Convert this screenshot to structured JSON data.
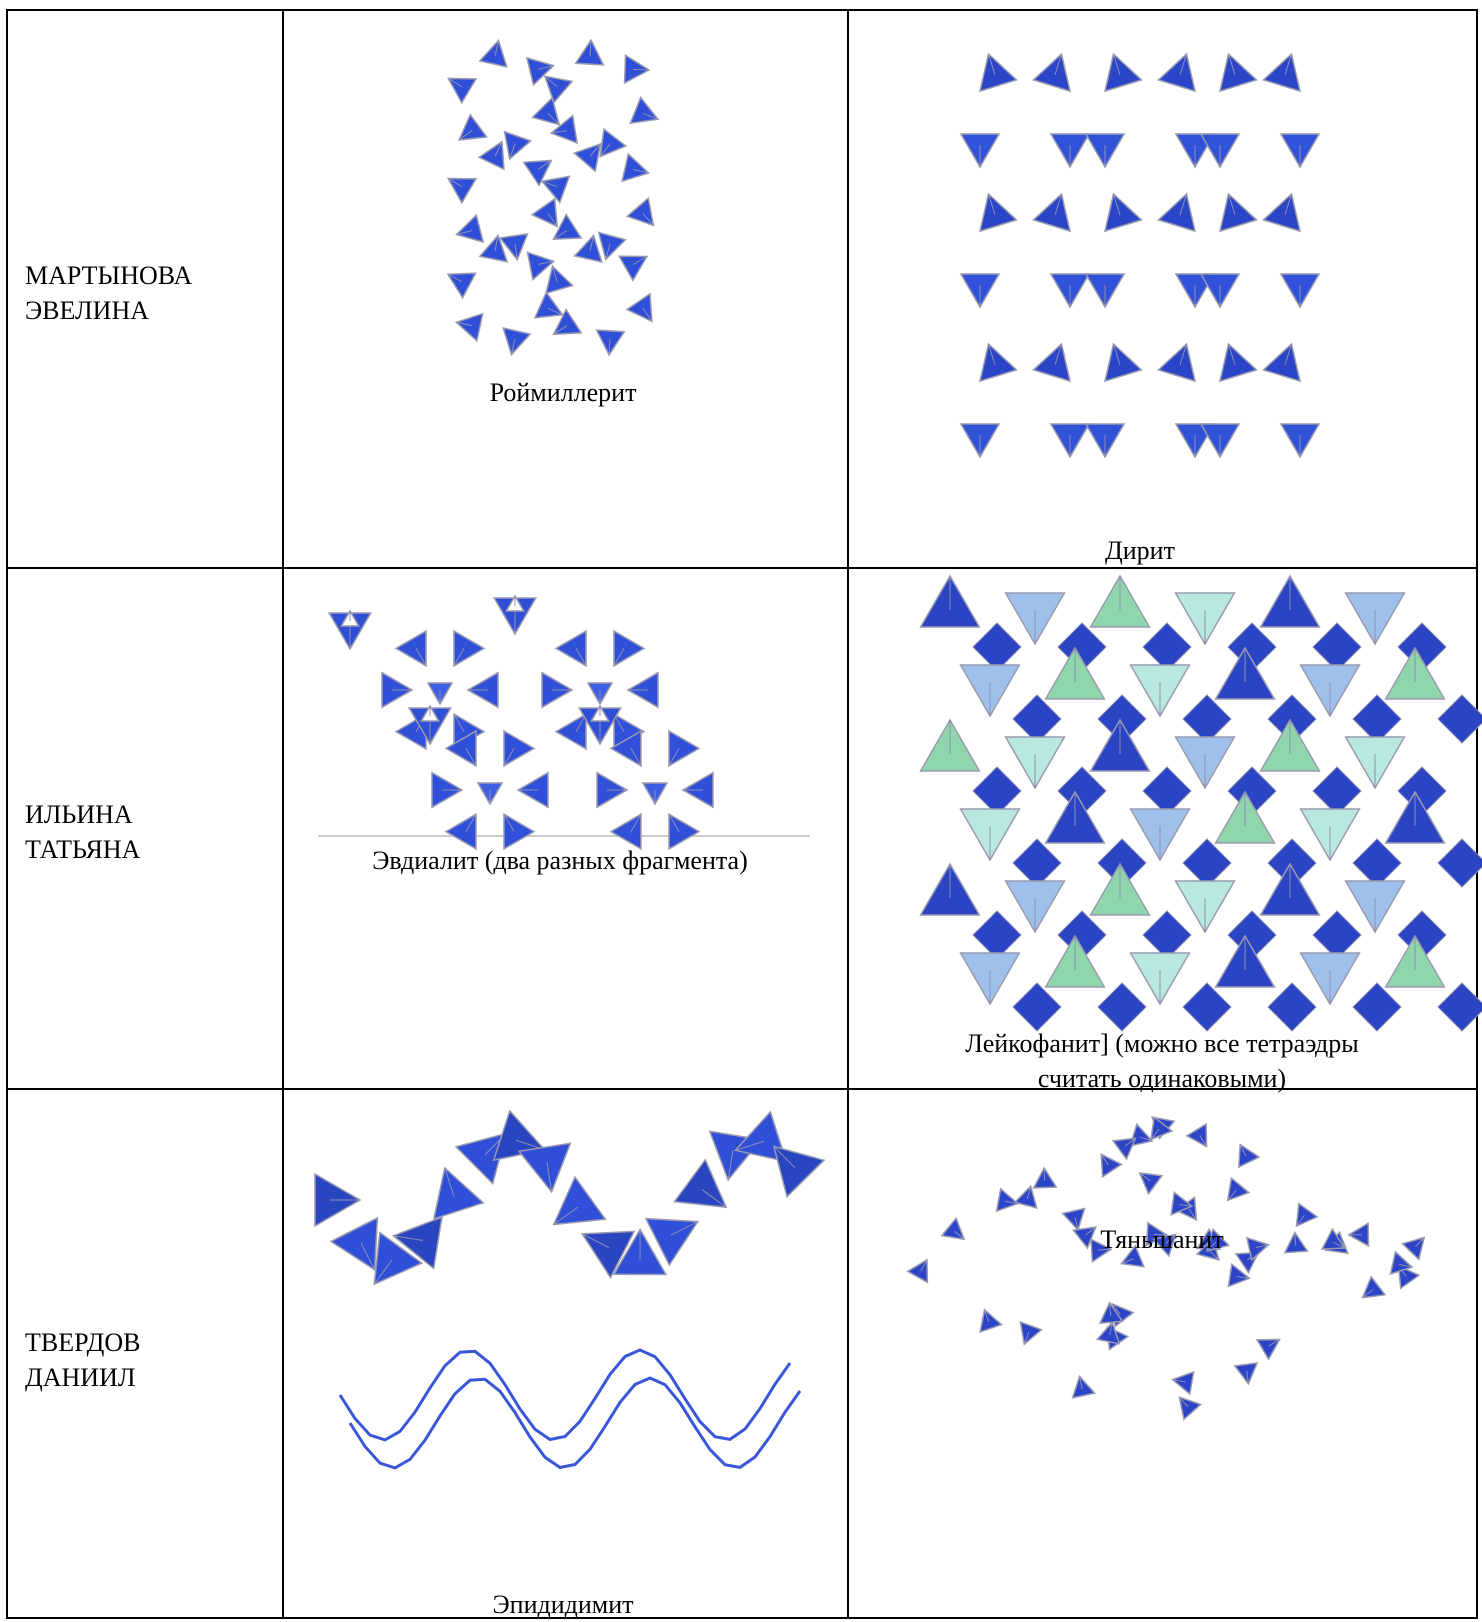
{
  "table": {
    "rows": [
      {
        "name": [
          "МАРТЫНОВА",
          "ЭВЕЛИНА"
        ],
        "cells": [
          {
            "caption": [
              "Роймиллерит"
            ]
          },
          {
            "caption": [
              "Дирит"
            ]
          }
        ]
      },
      {
        "name": [
          "ИЛЬИНА",
          "ТАТЬЯНА"
        ],
        "cells": [
          {
            "caption": [
              "Эвдиалит (два разных фрагмента)"
            ]
          },
          {
            "caption": [
              "Лейкофанит] (можно все тетраэдры",
              "считать одинаковыми)"
            ]
          }
        ]
      },
      {
        "name": [
          "ТВЕРДОВ",
          "ДАНИИЛ"
        ],
        "cells": [
          {
            "caption": [
              "Эпидидимит"
            ]
          },
          {
            "caption": [
              "Тяньшанит"
            ]
          }
        ]
      }
    ]
  }
}
